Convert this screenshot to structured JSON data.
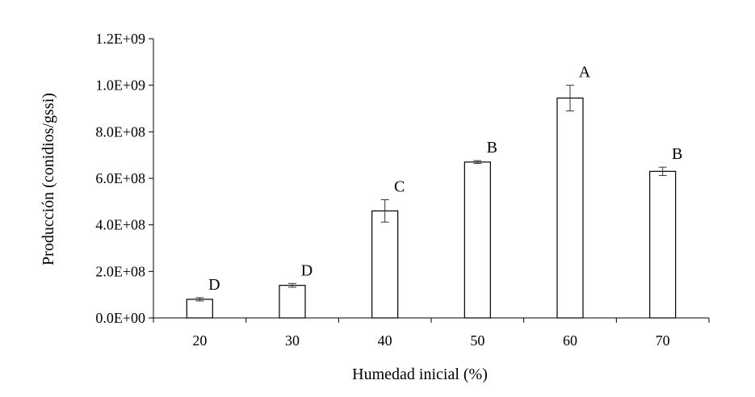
{
  "chart_data": {
    "type": "bar",
    "xlabel": "Humedad inicial (%)",
    "ylabel": "Producción (conidios/gssi)",
    "categories": [
      "20",
      "30",
      "40",
      "50",
      "60",
      "70"
    ],
    "values": [
      80000000,
      140000000,
      460000000,
      670000000,
      945000000,
      630000000
    ],
    "errors": [
      7000000,
      8000000,
      48000000,
      6000000,
      55000000,
      18000000
    ],
    "significance_labels": [
      "D",
      "D",
      "C",
      "B",
      "A",
      "B"
    ],
    "ylim": [
      0,
      1200000000
    ],
    "yticks": [
      0,
      200000000,
      400000000,
      600000000,
      800000000,
      1000000000,
      1200000000
    ],
    "ytick_labels": [
      "0.0E+00",
      "2.0E+08",
      "4.0E+08",
      "6.0E+08",
      "8.0E+08",
      "1.0E+09",
      "1.2E+09"
    ],
    "grid": false,
    "legend": false,
    "bar_fill": "#ffffff",
    "bar_stroke": "#000000"
  }
}
